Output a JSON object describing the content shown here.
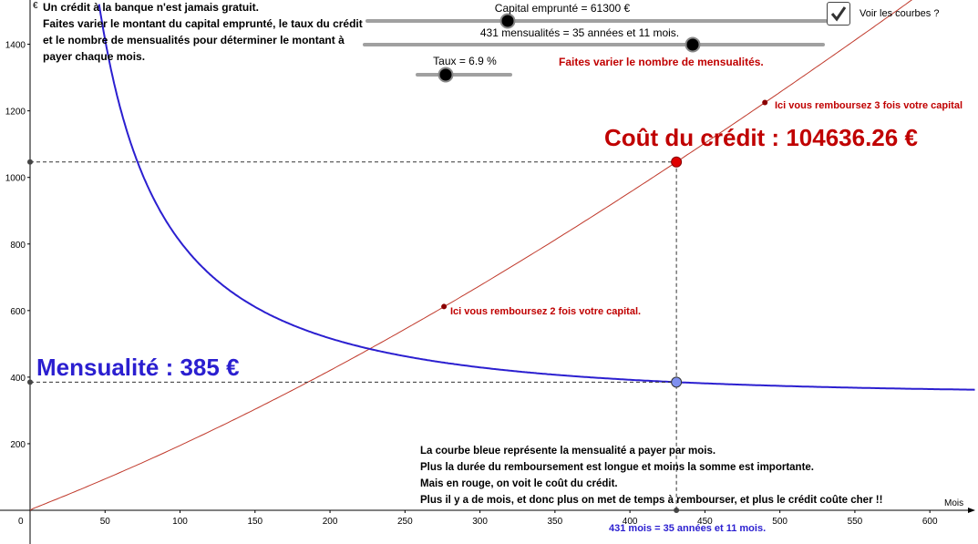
{
  "sliders": {
    "capital_label": "Capital emprunté = 61300 €",
    "capital_value": 61300,
    "mensualites_label": "431 mensualités = 35 années et 11 mois.",
    "mensualites_value": 431,
    "taux_label": "Taux = 6.9 %",
    "taux_value": 6.9
  },
  "checkbox": {
    "label": "Voir les courbes ?",
    "checked": true
  },
  "intro": {
    "line1": "Un crédit à la banque n'est jamais gratuit.",
    "line2": "Faites varier le montant du capital emprunté, le taux du crédit",
    "line3": "et le nombre de mensualités pour déterminer le montant à",
    "line4": "payer chaque mois."
  },
  "annotations": {
    "vary_months": "Faites varier le nombre de mensualités.",
    "cost_label": "Coût du crédit : 104636.26 €",
    "monthly_label": "Mensualité : 385 €",
    "twice": "Ici vous remboursez 2 fois votre capital.",
    "thrice": "Ici vous remboursez 3 fois votre capital",
    "months_readout": "431 mois = 35 années et 11 mois."
  },
  "explanation": {
    "line1": "La courbe bleue représente la mensualité a payer par mois.",
    "line2": "Plus la durée du remboursement est longue et moins la somme est importante.",
    "line3": "Mais en rouge, on voit le coût du crédit.",
    "line4": "Plus il y a de mois, et donc plus on met de temps à rembourser, et plus le crédit coûte cher !!"
  },
  "chart_data": {
    "type": "line",
    "title": "",
    "xlabel": "Mois",
    "ylabel": "€",
    "xlim": [
      0,
      630
    ],
    "ylim": [
      -95,
      1500
    ],
    "x_ticks": [
      0,
      50,
      100,
      150,
      200,
      250,
      300,
      350,
      400,
      450,
      500,
      550,
      600
    ],
    "y_ticks": [
      200,
      400,
      600,
      800,
      1000,
      1200,
      1400
    ],
    "capital": 61300,
    "annual_rate_percent": 6.9,
    "months": 431,
    "monthly_payment": 385,
    "credit_cost": 104636.26,
    "series": [
      {
        "key": "mensualite",
        "color": "#2b1fd0"
      },
      {
        "key": "cout",
        "color": "#c0392b"
      }
    ],
    "points": {
      "twice": {
        "x": 276,
        "y": 612
      },
      "thrice": {
        "x": 490,
        "y": 1225
      }
    }
  }
}
